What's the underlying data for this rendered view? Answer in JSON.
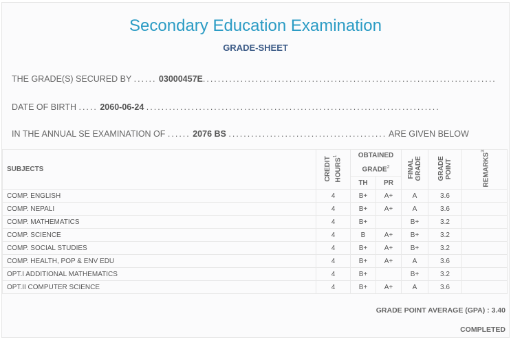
{
  "header": {
    "title": "Secondary Education Examination",
    "subtitle": "GRADE-SHEET"
  },
  "info": {
    "secured_by_label": "THE GRADE(S) SECURED BY",
    "symbol_no": "03000457E",
    "dob_label": "DATE OF BIRTH",
    "dob": "2060-06-24",
    "exam_label": "IN THE ANNUAL SE EXAMINATION OF",
    "exam_year": "2076 BS",
    "exam_suffix": "ARE GIVEN BELOW"
  },
  "table": {
    "headers": {
      "subjects": "SUBJECTS",
      "credit_hours": "CREDIT HOURS",
      "obtained_grade": "OBTAINED GRADE",
      "th": "TH",
      "pr": "PR",
      "final_grade": "FINAL GRADE",
      "grade_point": "GRADE POINT",
      "remarks": "REMARKS",
      "sup1": "1",
      "sup2": "2",
      "sup3": "3"
    },
    "rows": [
      {
        "subject": "COMP. ENGLISH",
        "credit": "4",
        "th": "B+",
        "pr": "A+",
        "final": "A",
        "gp": "3.6"
      },
      {
        "subject": "COMP. NEPALI",
        "credit": "4",
        "th": "B+",
        "pr": "A+",
        "final": "A",
        "gp": "3.6"
      },
      {
        "subject": "COMP. MATHEMATICS",
        "credit": "4",
        "th": "B+",
        "pr": "",
        "final": "B+",
        "gp": "3.2"
      },
      {
        "subject": "COMP. SCIENCE",
        "credit": "4",
        "th": "B",
        "pr": "A+",
        "final": "B+",
        "gp": "3.2"
      },
      {
        "subject": "COMP. SOCIAL STUDIES",
        "credit": "4",
        "th": "B+",
        "pr": "A+",
        "final": "B+",
        "gp": "3.2"
      },
      {
        "subject": "COMP. HEALTH, POP & ENV EDU",
        "credit": "4",
        "th": "B+",
        "pr": "A+",
        "final": "A",
        "gp": "3.6"
      },
      {
        "subject": "OPT.I ADDITIONAL MATHEMATICS",
        "credit": "4",
        "th": "B+",
        "pr": "",
        "final": "B+",
        "gp": "3.2"
      },
      {
        "subject": "OPT.II COMPUTER SCIENCE",
        "credit": "4",
        "th": "B+",
        "pr": "A+",
        "final": "A",
        "gp": "3.6"
      }
    ]
  },
  "footer": {
    "gpa_label": "GRADE POINT AVERAGE (GPA) :",
    "gpa": "3.40",
    "status": "COMPLETED"
  }
}
